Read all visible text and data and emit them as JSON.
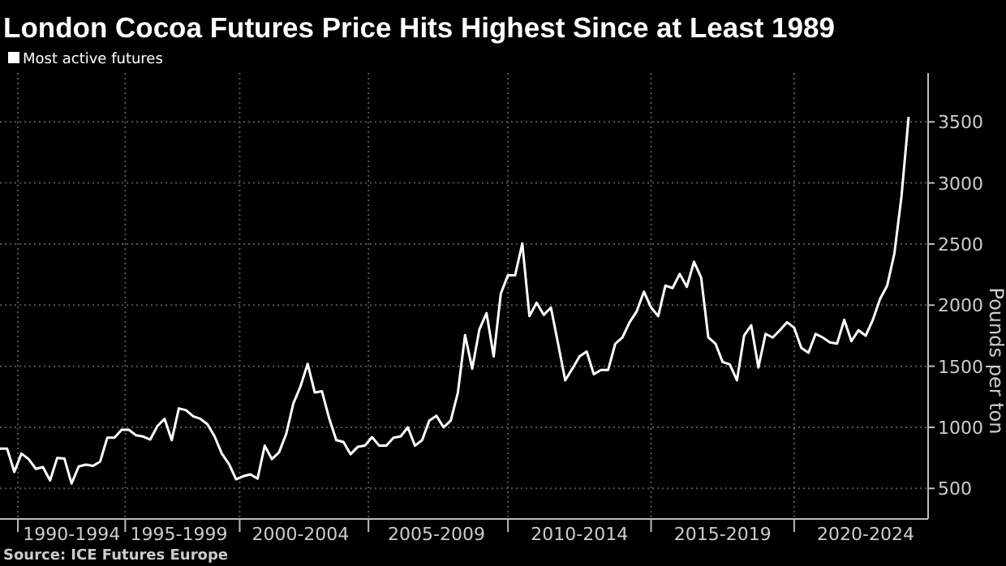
{
  "chart_data": {
    "type": "line",
    "title": "London Cocoa Futures Price Hits Highest Since at Least 1989",
    "ylabel": "Pounds per ton",
    "annotations": [
      "Source: ICE Futures Europe"
    ],
    "categories": [
      null,
      null,
      null,
      null,
      null,
      null,
      null,
      null,
      null,
      null,
      "1990-1994",
      null,
      null,
      null,
      null,
      null,
      null,
      null,
      null,
      null,
      null,
      null,
      null,
      null,
      null,
      "1995-1999",
      null,
      null,
      null,
      null,
      null,
      null,
      null,
      null,
      null,
      null,
      null,
      null,
      null,
      null,
      null,
      null,
      "2000-2004",
      null,
      null,
      null,
      null,
      null,
      null,
      null,
      null,
      null,
      null,
      null,
      null,
      null,
      null,
      null,
      null,
      null,
      null,
      "2005-2009",
      null,
      null,
      null,
      null,
      null,
      null,
      null,
      null,
      null,
      null,
      null,
      null,
      null,
      null,
      null,
      null,
      null,
      null,
      null,
      "2010-2014",
      null,
      null,
      null,
      null,
      null,
      null,
      null,
      null,
      null,
      null,
      null,
      null,
      null,
      null,
      null,
      null,
      null,
      null,
      null,
      "2015-2019",
      null,
      null,
      null,
      null,
      null,
      null,
      null,
      null,
      null,
      null,
      null,
      null,
      null,
      null,
      null,
      null,
      null,
      null,
      null,
      "2020-2024",
      null,
      null,
      null,
      null,
      null,
      null
    ],
    "series": [
      {
        "name": "Most active futures",
        "color": "#ffffff",
        "values": [
          825,
          825,
          635,
          785,
          740,
          660,
          675,
          565,
          750,
          745,
          540,
          680,
          695,
          685,
          720,
          915,
          915,
          980,
          980,
          935,
          925,
          900,
          1010,
          1070,
          895,
          1155,
          1140,
          1090,
          1070,
          1025,
          925,
          785,
          700,
          575,
          600,
          615,
          580,
          850,
          740,
          795,
          945,
          1195,
          1335,
          1520,
          1285,
          1295,
          1075,
          895,
          880,
          780,
          840,
          850,
          920,
          850,
          850,
          915,
          925,
          1000,
          850,
          895,
          1055,
          1095,
          1000,
          1055,
          1285,
          1755,
          1480,
          1800,
          1935,
          1580,
          2095,
          2245,
          2245,
          2505,
          1910,
          2020,
          1920,
          1980,
          1685,
          1385,
          1480,
          1580,
          1620,
          1435,
          1470,
          1470,
          1685,
          1735,
          1860,
          1950,
          2110,
          1980,
          1910,
          2160,
          2140,
          2255,
          2150,
          2355,
          2225,
          1735,
          1685,
          1535,
          1515,
          1385,
          1750,
          1835,
          1490,
          1765,
          1735,
          1795,
          1860,
          1815,
          1650,
          1610,
          1765,
          1735,
          1695,
          1685,
          1880,
          1705,
          1795,
          1750,
          1880,
          2050,
          2160,
          2420,
          2890,
          3540
        ]
      }
    ],
    "ylim": [
      250,
      3900
    ],
    "yticks": [
      500,
      1000,
      1500,
      2000,
      2500,
      3000,
      3500
    ],
    "grid": true,
    "legend": "top left",
    "marker": "none",
    "line_style": "solid"
  }
}
